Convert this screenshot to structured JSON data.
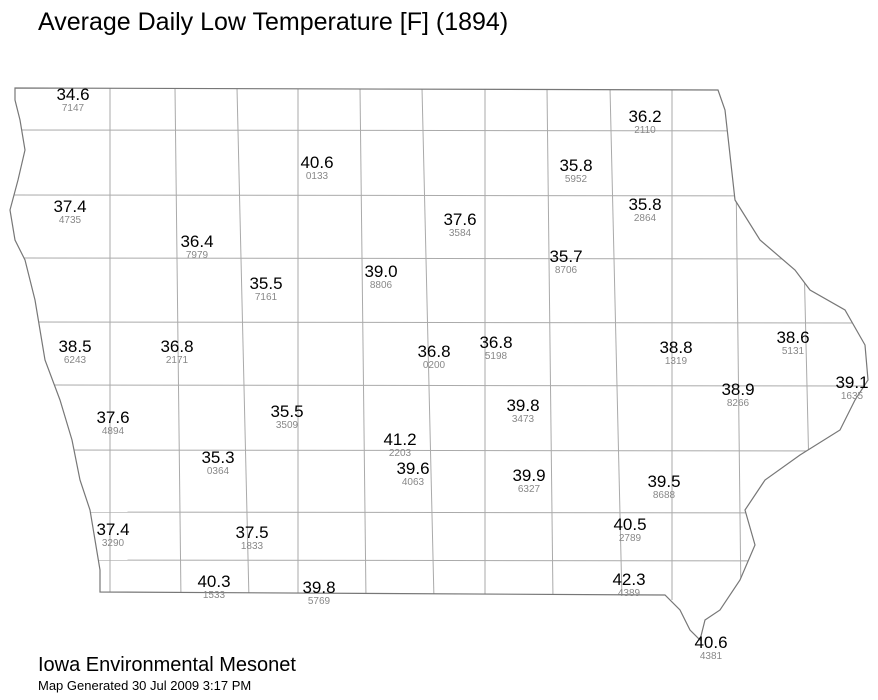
{
  "title": "Average Daily Low Temperature [F] (1894)",
  "stations": [
    {
      "value": "34.6",
      "id": "7147"
    },
    {
      "value": "36.2",
      "id": "2110"
    },
    {
      "value": "40.6",
      "id": "0133"
    },
    {
      "value": "35.8",
      "id": "5952"
    },
    {
      "value": "37.4",
      "id": "4735"
    },
    {
      "value": "35.8",
      "id": "2864"
    },
    {
      "value": "37.6",
      "id": "3584"
    },
    {
      "value": "36.4",
      "id": "7979"
    },
    {
      "value": "35.7",
      "id": "8706"
    },
    {
      "value": "39.0",
      "id": "8806"
    },
    {
      "value": "35.5",
      "id": "7161"
    },
    {
      "value": "38.5",
      "id": "6243"
    },
    {
      "value": "36.8",
      "id": "2171"
    },
    {
      "value": "36.8",
      "id": "0200"
    },
    {
      "value": "36.8",
      "id": "5198"
    },
    {
      "value": "38.8",
      "id": "1319"
    },
    {
      "value": "38.6",
      "id": "5131"
    },
    {
      "value": "39.1",
      "id": "1635"
    },
    {
      "value": "38.9",
      "id": "8266"
    },
    {
      "value": "37.6",
      "id": "4894"
    },
    {
      "value": "35.5",
      "id": "3509"
    },
    {
      "value": "39.8",
      "id": "3473"
    },
    {
      "value": "41.2",
      "id": "2203"
    },
    {
      "value": "35.3",
      "id": "0364"
    },
    {
      "value": "39.6",
      "id": "4063"
    },
    {
      "value": "39.9",
      "id": "6327"
    },
    {
      "value": "39.5",
      "id": "8688"
    },
    {
      "value": "37.4",
      "id": "3290"
    },
    {
      "value": "37.5",
      "id": "1833"
    },
    {
      "value": "40.5",
      "id": "2789"
    },
    {
      "value": "40.3",
      "id": "1533"
    },
    {
      "value": "39.8",
      "id": "5769"
    },
    {
      "value": "42.3",
      "id": "4389"
    },
    {
      "value": "40.6",
      "id": "4381"
    }
  ],
  "footer": {
    "org": "Iowa Environmental Mesonet",
    "generated": "Map Generated 30 Jul 2009 3:17 PM"
  }
}
